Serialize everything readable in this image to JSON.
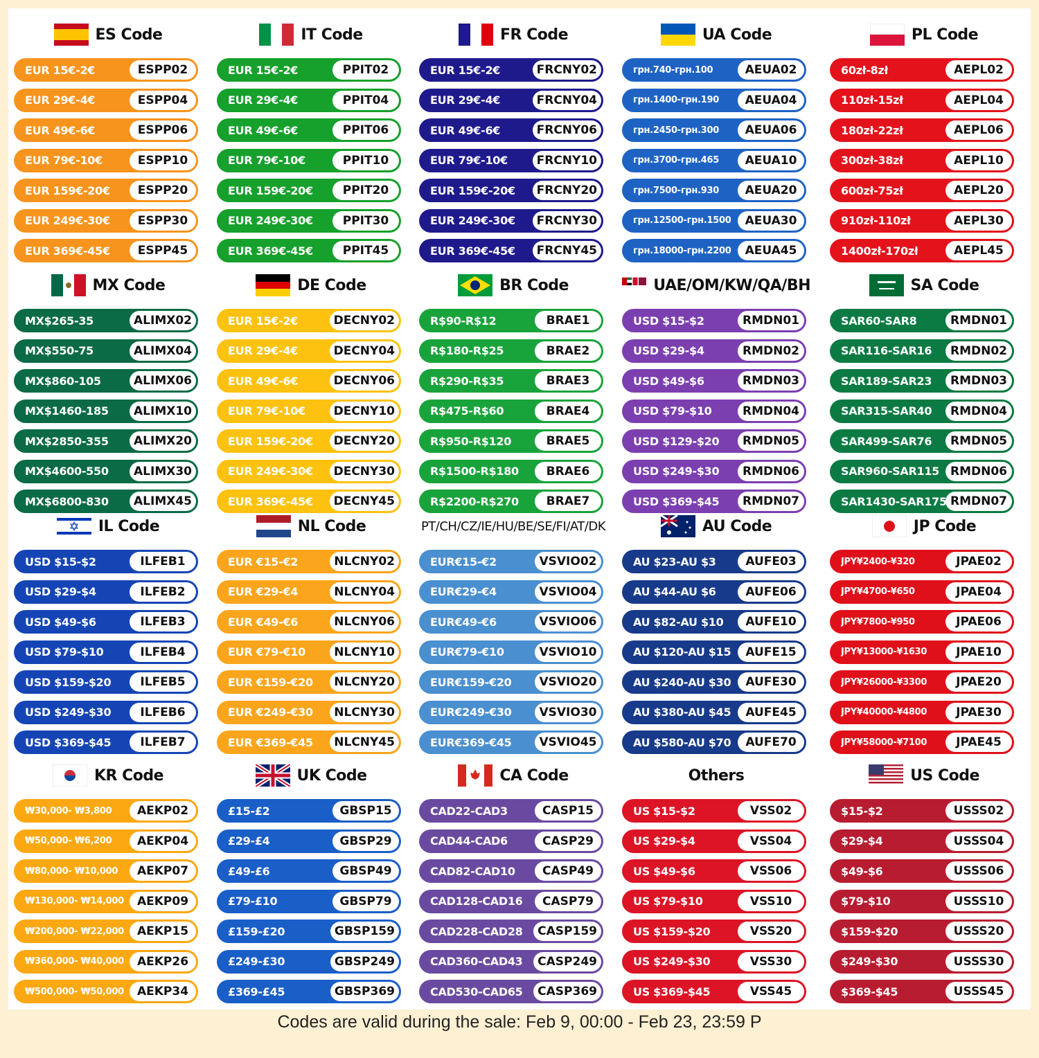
{
  "sections": [
    {
      "title": "ES Code",
      "flag": "spain-flag-icon",
      "color": "#f7941d",
      "rows": [
        [
          "EUR 15€-2€",
          "ESPP02"
        ],
        [
          "EUR 29€-4€",
          "ESPP04"
        ],
        [
          "EUR 49€-6€",
          "ESPP06"
        ],
        [
          "EUR 79€-10€",
          "ESPP10"
        ],
        [
          "EUR 159€-20€",
          "ESPP20"
        ],
        [
          "EUR 249€-30€",
          "ESPP30"
        ],
        [
          "EUR 369€-45€",
          "ESPP45"
        ]
      ]
    },
    {
      "title": "IT Code",
      "flag": "italy-flag-icon",
      "color": "#16a02c",
      "rows": [
        [
          "EUR 15€-2€",
          "PPIT02"
        ],
        [
          "EUR 29€-4€",
          "PPIT04"
        ],
        [
          "EUR 49€-6€",
          "PPIT06"
        ],
        [
          "EUR 79€-10€",
          "PPIT10"
        ],
        [
          "EUR 159€-20€",
          "PPIT20"
        ],
        [
          "EUR 249€-30€",
          "PPIT30"
        ],
        [
          "EUR 369€-45€",
          "PPIT45"
        ]
      ]
    },
    {
      "title": "FR Code",
      "flag": "france-flag-icon",
      "color": "#1f1a8c",
      "rows": [
        [
          "EUR 15€-2€",
          "FRCNY02"
        ],
        [
          "EUR 29€-4€",
          "FRCNY04"
        ],
        [
          "EUR 49€-6€",
          "FRCNY06"
        ],
        [
          "EUR 79€-10€",
          "FRCNY10"
        ],
        [
          "EUR 159€-20€",
          "FRCNY20"
        ],
        [
          "EUR 249€-30€",
          "FRCNY30"
        ],
        [
          "EUR 369€-45€",
          "FRCNY45"
        ]
      ]
    },
    {
      "title": "UA Code",
      "flag": "ukraine-flag-icon",
      "color": "#1e63c4",
      "small": true,
      "rows": [
        [
          "грн.740-грн.100",
          "AEUA02"
        ],
        [
          "грн.1400-грн.190",
          "AEUA04"
        ],
        [
          "грн.2450-грн.300",
          "AEUA06"
        ],
        [
          "грн.3700-грн.465",
          "AEUA10"
        ],
        [
          "грн.7500-грн.930",
          "AEUA20"
        ],
        [
          "грн.12500-грн.1500",
          "AEUA30"
        ],
        [
          "грн.18000-грн.2200",
          "AEUA45"
        ]
      ]
    },
    {
      "title": "PL Code",
      "flag": "poland-flag-icon",
      "color": "#e3121b",
      "rows": [
        [
          "60zł-8zł",
          "AEPL02"
        ],
        [
          "110zł-15zł",
          "AEPL04"
        ],
        [
          "180zł-22zł",
          "AEPL06"
        ],
        [
          "300zł-38zł",
          "AEPL10"
        ],
        [
          "600zł-75zł",
          "AEPL20"
        ],
        [
          "910zł-110zł",
          "AEPL30"
        ],
        [
          "1400zł-170zł",
          "AEPL45"
        ]
      ]
    },
    {
      "title": "MX Code",
      "flag": "mexico-flag-icon",
      "color": "#0a6b46",
      "rows": [
        [
          "MX$265-35",
          "ALIMX02"
        ],
        [
          "MX$550-75",
          "ALIMX04"
        ],
        [
          "MX$860-105",
          "ALIMX06"
        ],
        [
          "MX$1460-185",
          "ALIMX10"
        ],
        [
          "MX$2850-355",
          "ALIMX20"
        ],
        [
          "MX$4600-550",
          "ALIMX30"
        ],
        [
          "MX$6800-830",
          "ALIMX45"
        ]
      ]
    },
    {
      "title": "DE Code",
      "flag": "germany-flag-icon",
      "color": "#fdc20f",
      "rows": [
        [
          "EUR 15€-2€",
          "DECNY02"
        ],
        [
          "EUR 29€-4€",
          "DECNY04"
        ],
        [
          "EUR 49€-6€",
          "DECNY06"
        ],
        [
          "EUR 79€-10€",
          "DECNY10"
        ],
        [
          "EUR 159€-20€",
          "DECNY20"
        ],
        [
          "EUR 249€-30€",
          "DECNY30"
        ],
        [
          "EUR 369€-45€",
          "DECNY45"
        ]
      ]
    },
    {
      "title": "BR Code",
      "flag": "brazil-flag-icon",
      "color": "#19a33b",
      "rows": [
        [
          "R$90-R$12",
          "BRAE1"
        ],
        [
          "R$180-R$25",
          "BRAE2"
        ],
        [
          "R$290-R$35",
          "BRAE3"
        ],
        [
          "R$475-R$60",
          "BRAE4"
        ],
        [
          "R$950-R$120",
          "BRAE5"
        ],
        [
          "R$1500-R$180",
          "BRAE6"
        ],
        [
          "R$2200-R$270",
          "BRAE7"
        ]
      ]
    },
    {
      "title": "UAE/OM/KW/QA/BH",
      "flag": "gulf-flags-icon",
      "color": "#7b3fb0",
      "rows": [
        [
          "USD $15-$2",
          "RMDN01"
        ],
        [
          "USD $29-$4",
          "RMDN02"
        ],
        [
          "USD $49-$6",
          "RMDN03"
        ],
        [
          "USD $79-$10",
          "RMDN04"
        ],
        [
          "USD $129-$20",
          "RMDN05"
        ],
        [
          "USD $249-$30",
          "RMDN06"
        ],
        [
          "USD $369-$45",
          "RMDN07"
        ]
      ]
    },
    {
      "title": "SA Code",
      "flag": "saudi-flag-icon",
      "color": "#0c7a43",
      "rows": [
        [
          "SAR60-SAR8",
          "RMDN01"
        ],
        [
          "SAR116-SAR16",
          "RMDN02"
        ],
        [
          "SAR189-SAR23",
          "RMDN03"
        ],
        [
          "SAR315-SAR40",
          "RMDN04"
        ],
        [
          "SAR499-SAR76",
          "RMDN05"
        ],
        [
          "SAR960-SAR115",
          "RMDN06"
        ],
        [
          "SAR1430-SAR175",
          "RMDN07"
        ]
      ]
    },
    {
      "title": "IL Code",
      "flag": "israel-flag-icon",
      "color": "#1545b5",
      "rows": [
        [
          "USD $15-$2",
          "ILFEB1"
        ],
        [
          "USD $29-$4",
          "ILFEB2"
        ],
        [
          "USD $49-$6",
          "ILFEB3"
        ],
        [
          "USD $79-$10",
          "ILFEB4"
        ],
        [
          "USD $159-$20",
          "ILFEB5"
        ],
        [
          "USD $249-$30",
          "ILFEB6"
        ],
        [
          "USD $369-$45",
          "ILFEB7"
        ]
      ]
    },
    {
      "title": "NL Code",
      "flag": "netherlands-flag-icon",
      "color": "#fba51c",
      "rows": [
        [
          "EUR €15-€2",
          "NLCNY02"
        ],
        [
          "EUR €29-€4",
          "NLCNY04"
        ],
        [
          "EUR €49-€6",
          "NLCNY06"
        ],
        [
          "EUR €79-€10",
          "NLCNY10"
        ],
        [
          "EUR €159-€20",
          "NLCNY20"
        ],
        [
          "EUR €249-€30",
          "NLCNY30"
        ],
        [
          "EUR €369-€45",
          "NLCNY45"
        ]
      ]
    },
    {
      "title": "PT/CH/CZ/IE/HU/BE/SE/FI/AT/DK",
      "flag": "",
      "color": "#4a8fcf",
      "rows": [
        [
          "EUR€15-€2",
          "VSVIO02"
        ],
        [
          "EUR€29-€4",
          "VSVIO04"
        ],
        [
          "EUR€49-€6",
          "VSVIO06"
        ],
        [
          "EUR€79-€10",
          "VSVIO10"
        ],
        [
          "EUR€159-€20",
          "VSVIO20"
        ],
        [
          "EUR€249-€30",
          "VSVIO30"
        ],
        [
          "EUR€369-€45",
          "VSVIO45"
        ]
      ]
    },
    {
      "title": "AU Code",
      "flag": "australia-flag-icon",
      "color": "#173a8a",
      "rows": [
        [
          "AU $23-AU $3",
          "AUFE03"
        ],
        [
          "AU $44-AU $6",
          "AUFE06"
        ],
        [
          "AU $82-AU $10",
          "AUFE10"
        ],
        [
          "AU $120-AU $15",
          "AUFE15"
        ],
        [
          "AU $240-AU $30",
          "AUFE30"
        ],
        [
          "AU $380-AU $45",
          "AUFE45"
        ],
        [
          "AU $580-AU $70",
          "AUFE70"
        ]
      ]
    },
    {
      "title": "JP Code",
      "flag": "japan-flag-icon",
      "color": "#e0101a",
      "small": true,
      "rows": [
        [
          "JPY¥2400-¥320",
          "JPAE02"
        ],
        [
          "JPY¥4700-¥650",
          "JPAE04"
        ],
        [
          "JPY¥7800-¥950",
          "JPAE06"
        ],
        [
          "JPY¥13000-¥1630",
          "JPAE10"
        ],
        [
          "JPY¥26000-¥3300",
          "JPAE20"
        ],
        [
          "JPY¥40000-¥4800",
          "JPAE30"
        ],
        [
          "JPY¥58000-¥7100",
          "JPAE45"
        ]
      ]
    },
    {
      "title": "KR Code",
      "flag": "korea-flag-icon",
      "color": "#fba812",
      "small": true,
      "rows": [
        [
          "₩30,000- ₩3,800",
          "AEKP02"
        ],
        [
          "₩50,000- ₩6,200",
          "AEKP04"
        ],
        [
          "₩80,000- ₩10,000",
          "AEKP07"
        ],
        [
          "₩130,000- ₩14,000",
          "AEKP09"
        ],
        [
          "₩200,000- ₩22,000",
          "AEKP15"
        ],
        [
          "₩360,000- ₩40,000",
          "AEKP26"
        ],
        [
          "₩500,000- ₩50,000",
          "AEKP34"
        ]
      ]
    },
    {
      "title": "UK Code",
      "flag": "uk-flag-icon",
      "color": "#1a5ec8",
      "rows": [
        [
          "£15-£2",
          "GBSP15"
        ],
        [
          "£29-£4",
          "GBSP29"
        ],
        [
          "£49-£6",
          "GBSP49"
        ],
        [
          "£79-£10",
          "GBSP79"
        ],
        [
          "£159-£20",
          "GBSP159"
        ],
        [
          "£249-£30",
          "GBSP249"
        ],
        [
          "£369-£45",
          "GBSP369"
        ]
      ]
    },
    {
      "title": "CA Code",
      "flag": "canada-flag-icon",
      "color": "#6a4aa0",
      "rows": [
        [
          "CAD22-CAD3",
          "CASP15"
        ],
        [
          "CAD44-CAD6",
          "CASP29"
        ],
        [
          "CAD82-CAD10",
          "CASP49"
        ],
        [
          "CAD128-CAD16",
          "CASP79"
        ],
        [
          "CAD228-CAD28",
          "CASP159"
        ],
        [
          "CAD360-CAD43",
          "CASP249"
        ],
        [
          "CAD530-CAD65",
          "CASP369"
        ]
      ]
    },
    {
      "title": "Others",
      "flag": "",
      "color": "#dc1426",
      "rows": [
        [
          "US $15-$2",
          "VSS02"
        ],
        [
          "US $29-$4",
          "VSS04"
        ],
        [
          "US $49-$6",
          "VSS06"
        ],
        [
          "US $79-$10",
          "VSS10"
        ],
        [
          "US $159-$20",
          "VSS20"
        ],
        [
          "US $249-$30",
          "VSS30"
        ],
        [
          "US $369-$45",
          "VSS45"
        ]
      ]
    },
    {
      "title": "US Code",
      "flag": "usa-flag-icon",
      "color": "#b81c30",
      "rows": [
        [
          "$15-$2",
          "USSS02"
        ],
        [
          "$29-$4",
          "USSS04"
        ],
        [
          "$49-$6",
          "USSS06"
        ],
        [
          "$79-$10",
          "USSS10"
        ],
        [
          "$159-$20",
          "USSS20"
        ],
        [
          "$249-$30",
          "USSS30"
        ],
        [
          "$369-$45",
          "USSS45"
        ]
      ]
    }
  ],
  "footer": "Codes are valid during the sale: Feb 9, 00:00 - Feb 23, 23:59 P"
}
